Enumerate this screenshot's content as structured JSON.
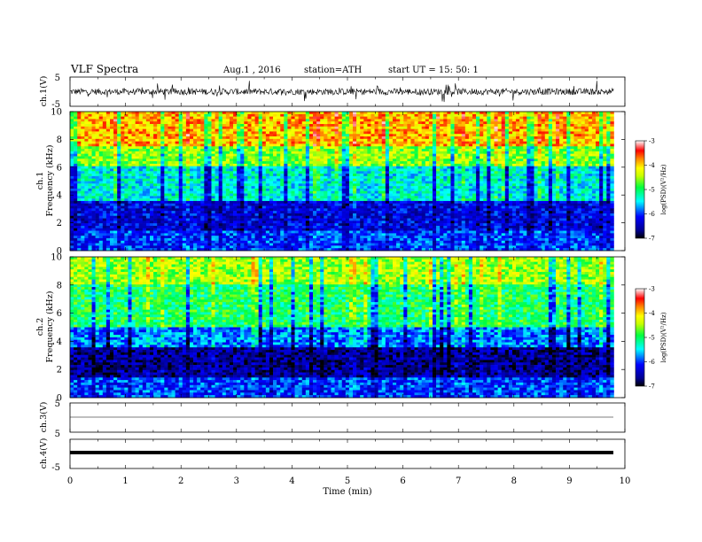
{
  "header": {
    "title": "VLF  Spectra",
    "date": "Aug.1  , 2016",
    "station": "station=ATH",
    "start": "start  UT =    15: 50: 1"
  },
  "chart_data": [
    {
      "type": "line",
      "panel": "ch1",
      "ylabel": "ch.1(V)",
      "ylim": [
        -5,
        5
      ],
      "yticks": [
        "5",
        "-5"
      ],
      "signal": "noisy waveform centred near 0 V, amplitude about 1-2 V with frequent spikes",
      "color": "#000000"
    },
    {
      "type": "heatmap",
      "panel": "ch1-spectrogram",
      "ylabel_line1": "ch.1",
      "ylabel_line2": "Frequency  (kHz)",
      "ylim": [
        0,
        10
      ],
      "yticks": [
        "0",
        "2",
        "4",
        "6",
        "8",
        "10"
      ],
      "xlim": [
        0,
        9.8
      ],
      "colorbar": {
        "label": "log(PSD)(V²/Hz)",
        "range": [
          -7,
          -3
        ],
        "ticks": [
          "-3",
          "-4",
          "-5",
          "-6",
          "-7"
        ]
      },
      "bands": [
        {
          "from_khz": 0,
          "to_khz": 1.5,
          "log_psd": -6.0
        },
        {
          "from_khz": 1.5,
          "to_khz": 3.5,
          "log_psd": -6.3
        },
        {
          "from_khz": 3.5,
          "to_khz": 6,
          "log_psd": -5.4
        },
        {
          "from_khz": 6,
          "to_khz": 7.5,
          "log_psd": -4.6
        },
        {
          "from_khz": 7.5,
          "to_khz": 10,
          "log_psd": -3.9
        }
      ]
    },
    {
      "type": "heatmap",
      "panel": "ch2-spectrogram",
      "ylabel_line1": "ch.2",
      "ylabel_line2": "Frequency  (kHz)",
      "ylim": [
        0,
        10
      ],
      "yticks": [
        "0",
        "2",
        "4",
        "6",
        "8",
        "10"
      ],
      "xlim": [
        0,
        9.8
      ],
      "colorbar": {
        "label": "log(PSD)(V²/Hz)",
        "range": [
          -7,
          -3
        ],
        "ticks": [
          "-3",
          "-4",
          "-5",
          "-6",
          "-7"
        ]
      },
      "bands": [
        {
          "from_khz": 0,
          "to_khz": 1.5,
          "log_psd": -6.0
        },
        {
          "from_khz": 1.5,
          "to_khz": 3.5,
          "log_psd": -6.6
        },
        {
          "from_khz": 3.5,
          "to_khz": 5,
          "log_psd": -5.8
        },
        {
          "from_khz": 5,
          "to_khz": 8,
          "log_psd": -5.0
        },
        {
          "from_khz": 8,
          "to_khz": 10,
          "log_psd": -4.5
        }
      ]
    },
    {
      "type": "line",
      "panel": "ch3",
      "ylabel": "ch.3(V)",
      "ylim": [
        -5,
        5
      ],
      "yticks": [
        "5",
        "-5"
      ],
      "signal": "flat line near 0 V",
      "color": "#000000"
    },
    {
      "type": "line",
      "panel": "ch4",
      "ylabel": "ch.4(V)",
      "ylim": [
        -5,
        5
      ],
      "yticks": [
        "5",
        "-5"
      ],
      "signal": "thick flat line near 0 V",
      "color": "#000000"
    }
  ],
  "xaxis": {
    "label": "Time  (min)",
    "range": [
      0,
      10
    ],
    "ticks": [
      "0",
      "1",
      "2",
      "3",
      "4",
      "5",
      "6",
      "7",
      "8",
      "9",
      "10"
    ]
  }
}
